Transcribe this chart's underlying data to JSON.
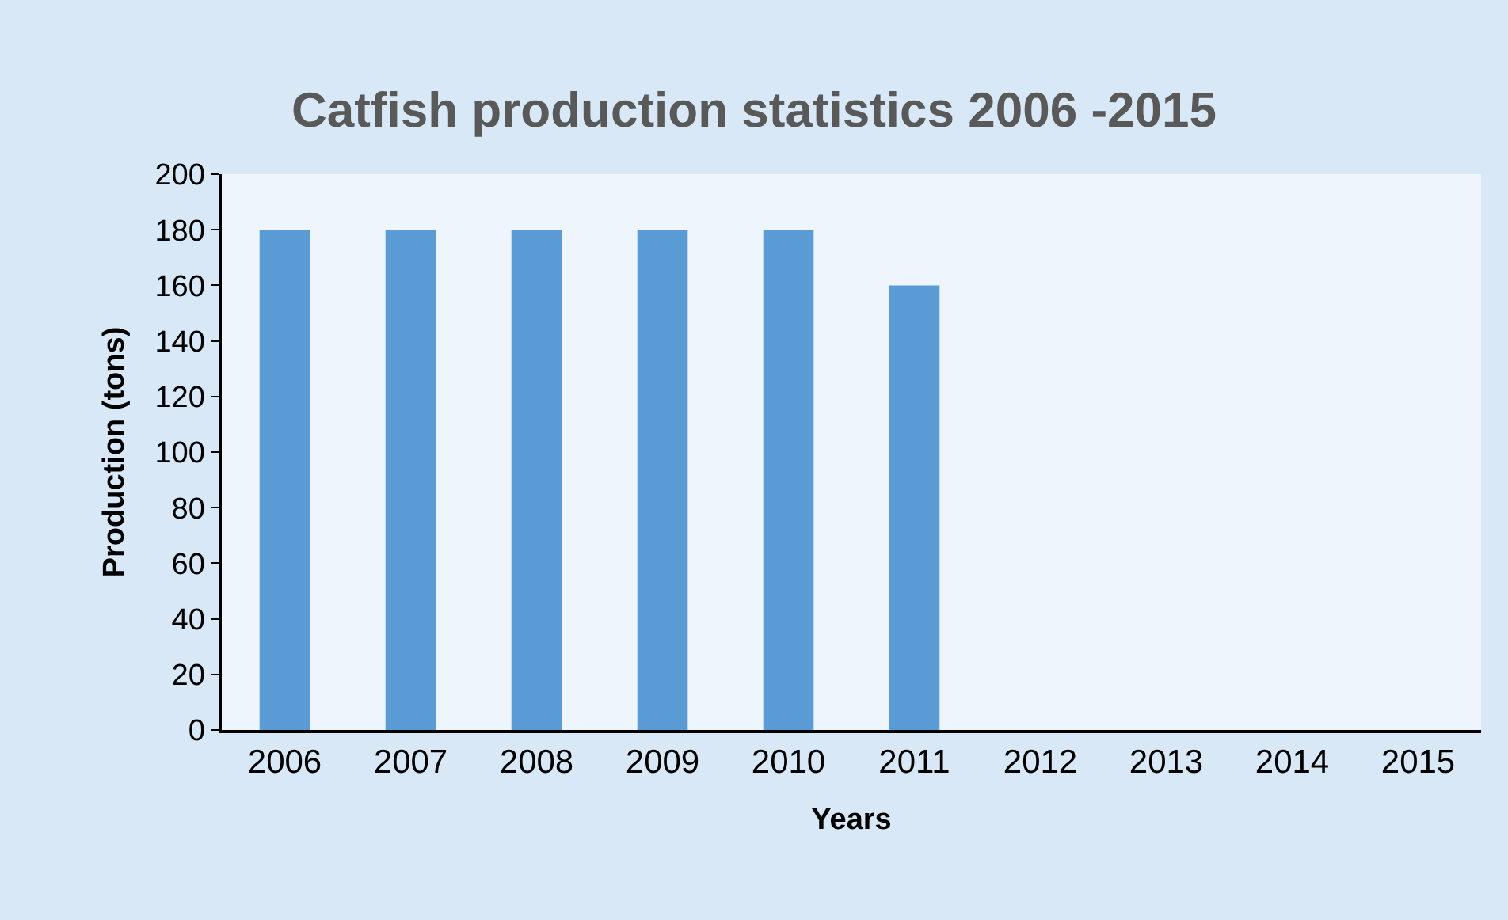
{
  "chart_data": {
    "type": "bar",
    "title": "Catfish production statistics 2006 -2015",
    "xlabel": "Years",
    "ylabel": "Production (tons)",
    "categories": [
      "2006",
      "2007",
      "2008",
      "2009",
      "2010",
      "2011",
      "2012",
      "2013",
      "2014",
      "2015"
    ],
    "values": [
      180,
      180,
      180,
      180,
      180,
      160,
      0,
      0,
      0,
      0
    ],
    "color": "#5b9bd5",
    "ylim": [
      0,
      200
    ],
    "yticks": [
      0,
      20,
      40,
      60,
      80,
      100,
      120,
      140,
      160,
      180,
      200
    ],
    "grid": false
  }
}
